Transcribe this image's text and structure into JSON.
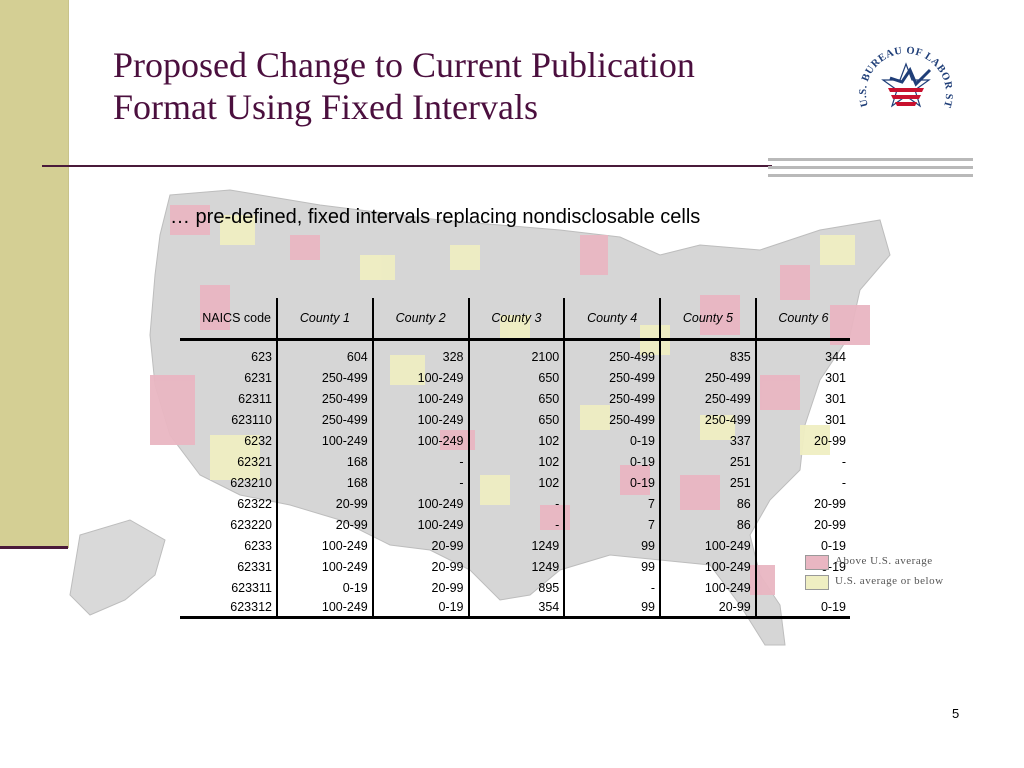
{
  "slide": {
    "title_line1": "Proposed Change to Current Publication",
    "title_line2": "Format Using Fixed Intervals",
    "subtitle": "… pre-defined, fixed intervals replacing nondisclosable cells",
    "page_number": "5"
  },
  "logo": {
    "text": "U.S. BUREAU OF LABOR STATISTICS",
    "icon": "bls-star-logo-icon"
  },
  "colors": {
    "title": "#4b0f3e",
    "left_bar": "#d4cf94",
    "map_above": "#e9b6c2",
    "map_below": "#efeec2",
    "map_base": "#d6d6d6"
  },
  "table": {
    "headers": [
      "NAICS code",
      "County 1",
      "County 2",
      "County 3",
      "County 4",
      "County 5",
      "County 6"
    ],
    "rows": [
      [
        "623",
        "604",
        "328",
        "2100",
        "250-499",
        "835",
        "344"
      ],
      [
        "6231",
        "250-499",
        "100-249",
        "650",
        "250-499",
        "250-499",
        "301"
      ],
      [
        "62311",
        "250-499",
        "100-249",
        "650",
        "250-499",
        "250-499",
        "301"
      ],
      [
        "623110",
        "250-499",
        "100-249",
        "650",
        "250-499",
        "250-499",
        "301"
      ],
      [
        "6232",
        "100-249",
        "100-249",
        "102",
        "0-19",
        "337",
        "20-99"
      ],
      [
        "62321",
        "168",
        "-",
        "102",
        "0-19",
        "251",
        "-"
      ],
      [
        "623210",
        "168",
        "-",
        "102",
        "0-19",
        "251",
        "-"
      ],
      [
        "62322",
        "20-99",
        "100-249",
        "-",
        "7",
        "86",
        "20-99"
      ],
      [
        "623220",
        "20-99",
        "100-249",
        "-",
        "7",
        "86",
        "20-99"
      ],
      [
        "6233",
        "100-249",
        "20-99",
        "1249",
        "99",
        "100-249",
        "0-19"
      ],
      [
        "62331",
        "100-249",
        "20-99",
        "1249",
        "99",
        "100-249",
        "0-19"
      ],
      [
        "623311",
        "0-19",
        "20-99",
        "895",
        "-",
        "100-249",
        ""
      ],
      [
        "623312",
        "100-249",
        "0-19",
        "354",
        "99",
        "20-99",
        "0-19"
      ]
    ]
  },
  "legend": {
    "items": [
      {
        "label": "Above U.S. average",
        "color": "#e9b6c2"
      },
      {
        "label": "U.S. average or below",
        "color": "#efeec2"
      }
    ]
  }
}
